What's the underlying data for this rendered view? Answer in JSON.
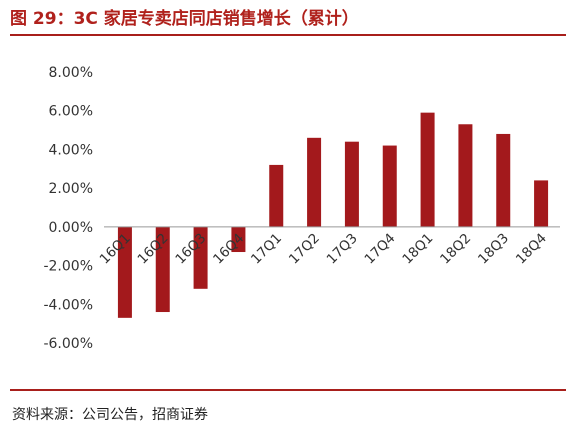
{
  "header": {
    "title": "图 29：3C 家居专卖店同店销售增长（累计）"
  },
  "footer": {
    "source": "资料来源：公司公告，招商证券"
  },
  "colors": {
    "bar": "#a3191c",
    "accent": "#b0211c"
  },
  "chart_data": {
    "type": "bar",
    "categories": [
      "16Q1",
      "16Q2",
      "16Q3",
      "16Q4",
      "17Q1",
      "17Q2",
      "17Q3",
      "17Q4",
      "18Q1",
      "18Q2",
      "18Q3",
      "18Q4"
    ],
    "values": [
      -4.7,
      -4.4,
      -3.2,
      -1.3,
      3.2,
      4.6,
      4.4,
      4.2,
      5.9,
      5.3,
      4.8,
      2.4
    ],
    "y_ticks": [
      "8.00%",
      "6.00%",
      "4.00%",
      "2.00%",
      "0.00%",
      "-2.00%",
      "-4.00%",
      "-6.00%"
    ],
    "ylim": [
      -6,
      8
    ],
    "title": "",
    "xlabel": "",
    "ylabel": "",
    "grid": false,
    "legend": "none"
  }
}
